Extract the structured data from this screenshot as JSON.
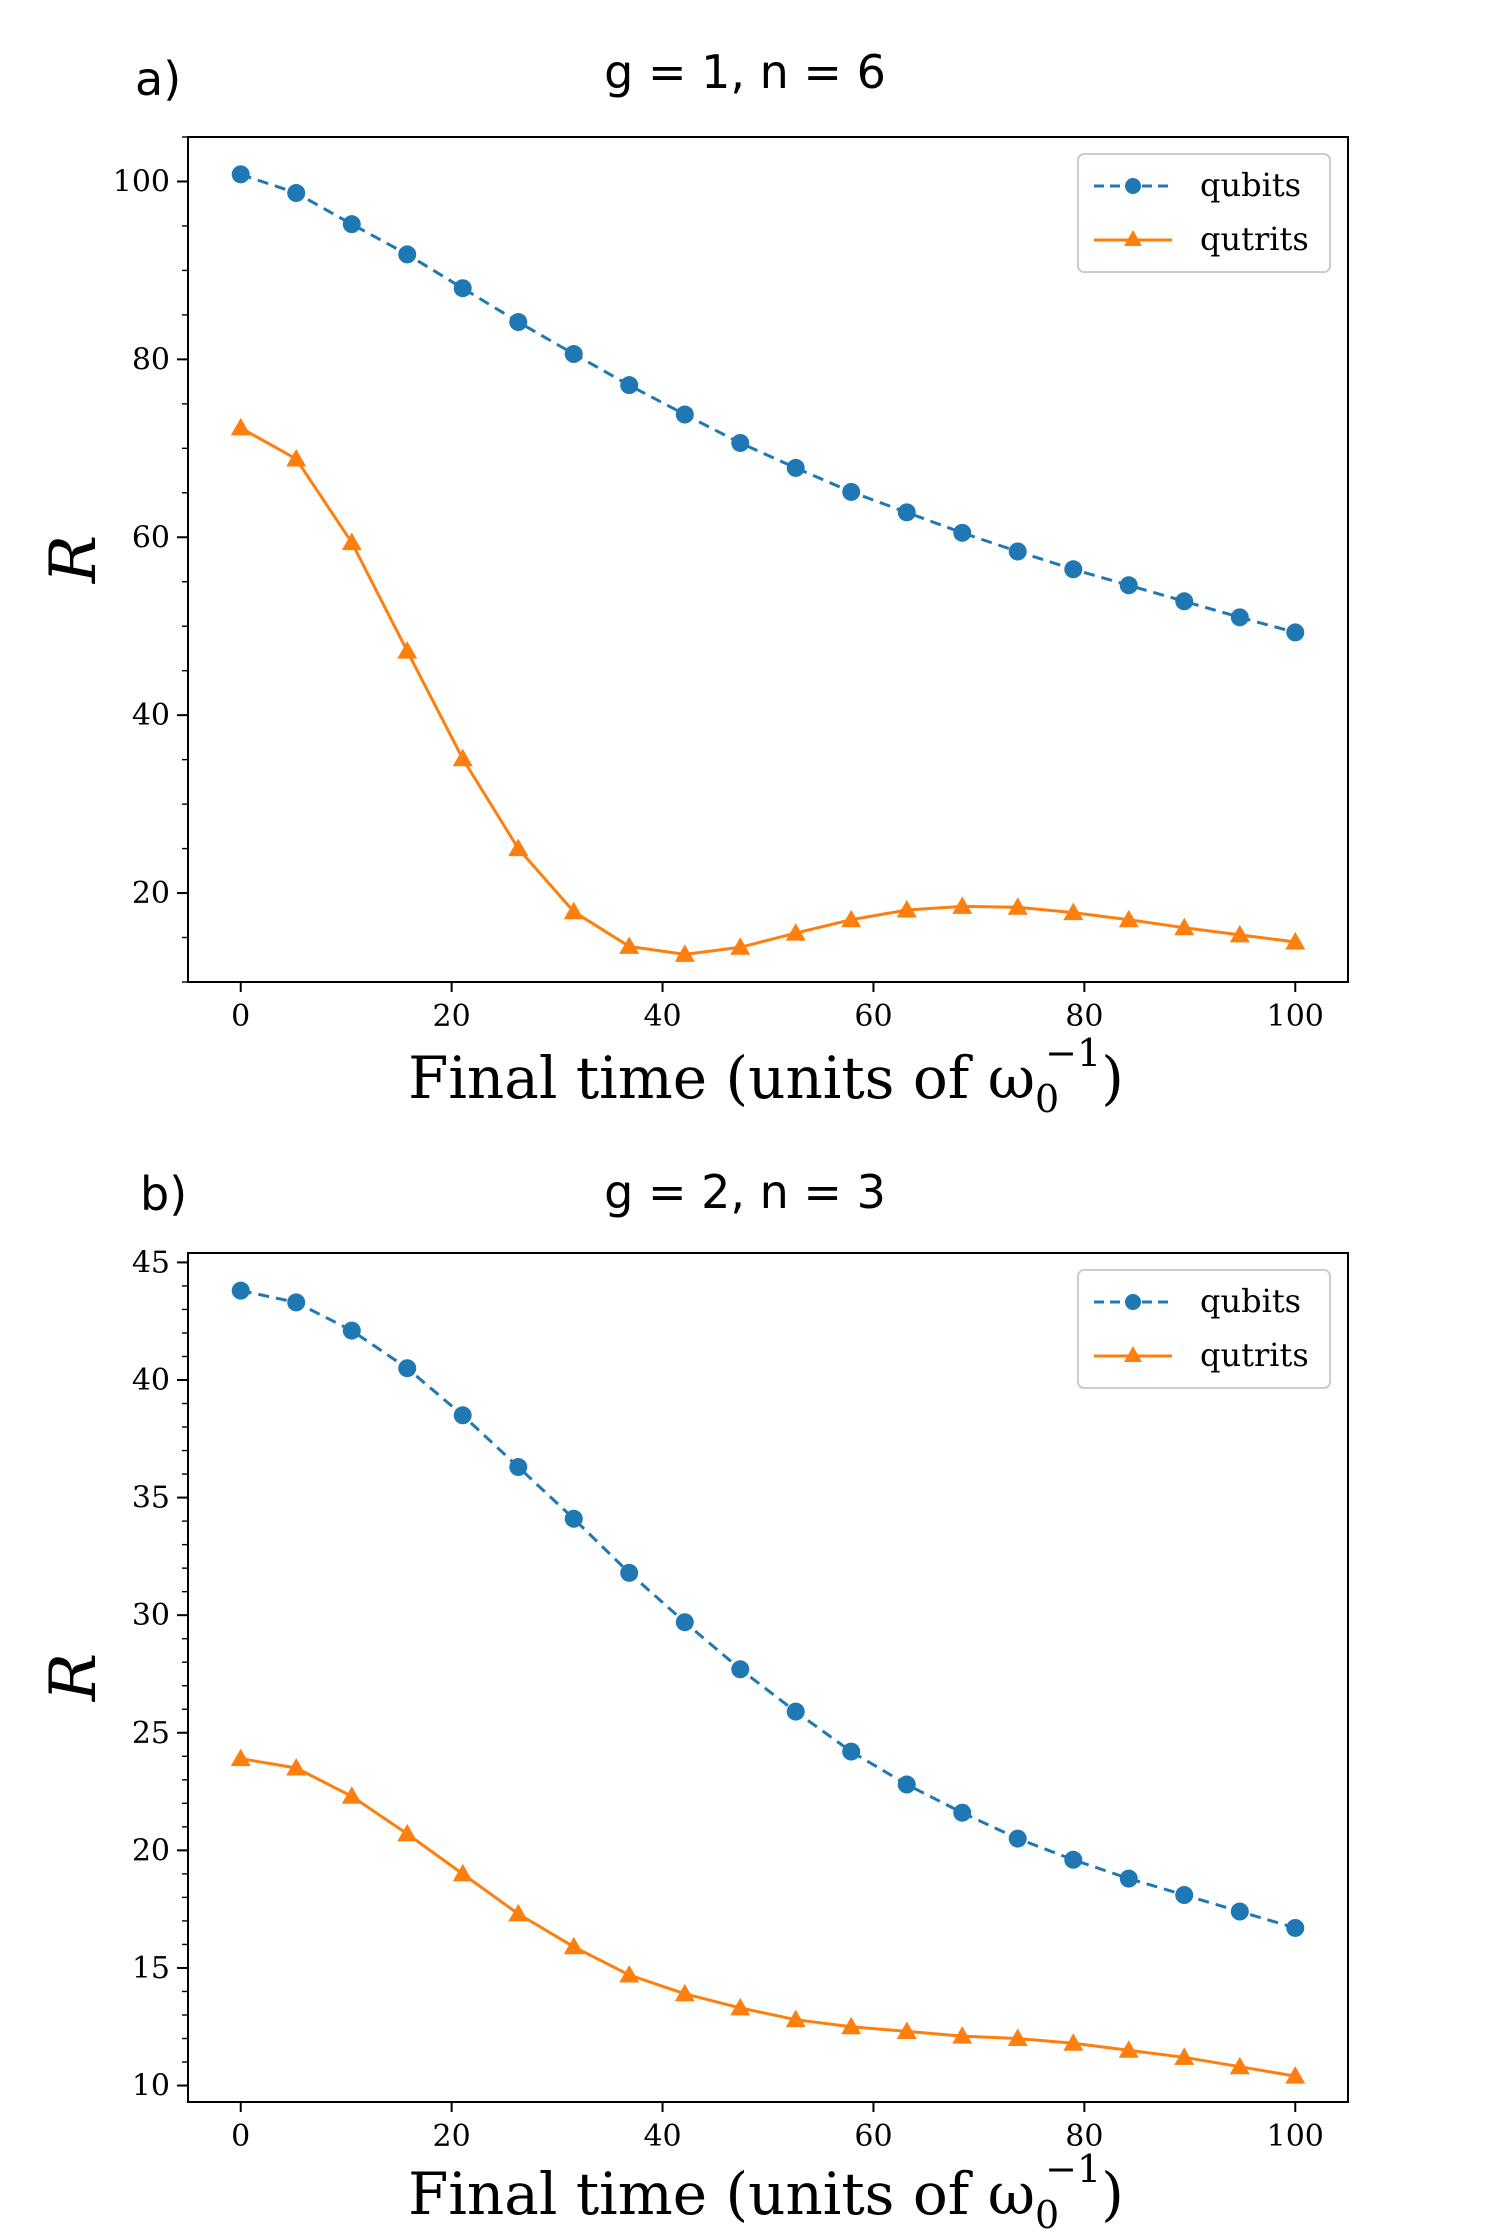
{
  "chart_data": [
    {
      "type": "line",
      "panel_label": "a)",
      "title": "g = 1, n = 6",
      "xlabel": "Final time (units of ω",
      "xlabel_sub": "0",
      "xlabel_sup": "−1",
      "xlabel_tail": ")",
      "ylabel": "R",
      "xlim": [
        -5,
        105
      ],
      "ylim": [
        10,
        105
      ],
      "xticks": [
        0,
        20,
        40,
        60,
        80,
        100
      ],
      "yticks": [
        20,
        40,
        60,
        80,
        100
      ],
      "yminor_step": 5,
      "legend_position": "top-right",
      "x": [
        0,
        5.26,
        10.53,
        15.79,
        21.05,
        26.32,
        31.58,
        36.84,
        42.11,
        47.37,
        52.63,
        57.89,
        63.16,
        68.42,
        73.68,
        78.95,
        84.21,
        89.47,
        94.74,
        100
      ],
      "series": [
        {
          "name": "qubits",
          "color": "#1f77b4",
          "style": "dashed",
          "marker": "circle",
          "values": [
            100.8,
            98.7,
            95.2,
            91.8,
            88.0,
            84.2,
            80.6,
            77.1,
            73.8,
            70.6,
            67.8,
            65.1,
            62.8,
            60.5,
            58.4,
            56.4,
            54.6,
            52.8,
            51.0,
            49.3
          ]
        },
        {
          "name": "qutrits",
          "color": "#ff7f0e",
          "style": "solid",
          "marker": "triangle",
          "values": [
            72.3,
            68.8,
            59.4,
            47.2,
            35.1,
            25.0,
            17.9,
            14.0,
            13.1,
            13.9,
            15.5,
            17.0,
            18.1,
            18.5,
            18.4,
            17.8,
            17.0,
            16.1,
            15.3,
            14.5
          ]
        }
      ]
    },
    {
      "type": "line",
      "panel_label": "b)",
      "title": "g = 2, n = 3",
      "xlabel": "Final time (units of ω",
      "xlabel_sub": "0",
      "xlabel_sup": "−1",
      "xlabel_tail": ")",
      "ylabel": "R",
      "xlim": [
        -5,
        105
      ],
      "ylim": [
        9.3,
        45.4
      ],
      "xticks": [
        0,
        20,
        40,
        60,
        80,
        100
      ],
      "yticks": [
        10,
        15,
        20,
        25,
        30,
        35,
        40,
        45
      ],
      "yminor_step": 1,
      "legend_position": "top-right",
      "x": [
        0,
        5.26,
        10.53,
        15.79,
        21.05,
        26.32,
        31.58,
        36.84,
        42.11,
        47.37,
        52.63,
        57.89,
        63.16,
        68.42,
        73.68,
        78.95,
        84.21,
        89.47,
        94.74,
        100
      ],
      "series": [
        {
          "name": "qubits",
          "color": "#1f77b4",
          "style": "dashed",
          "marker": "circle",
          "values": [
            43.8,
            43.3,
            42.1,
            40.5,
            38.5,
            36.3,
            34.1,
            31.8,
            29.7,
            27.7,
            25.9,
            24.2,
            22.8,
            21.6,
            20.5,
            19.6,
            18.8,
            18.1,
            17.4,
            16.7
          ]
        },
        {
          "name": "qutrits",
          "color": "#ff7f0e",
          "style": "solid",
          "marker": "triangle",
          "values": [
            23.9,
            23.5,
            22.3,
            20.7,
            19.0,
            17.3,
            15.9,
            14.7,
            13.9,
            13.3,
            12.8,
            12.5,
            12.3,
            12.1,
            12.0,
            11.8,
            11.5,
            11.2,
            10.8,
            10.4
          ]
        }
      ]
    }
  ]
}
